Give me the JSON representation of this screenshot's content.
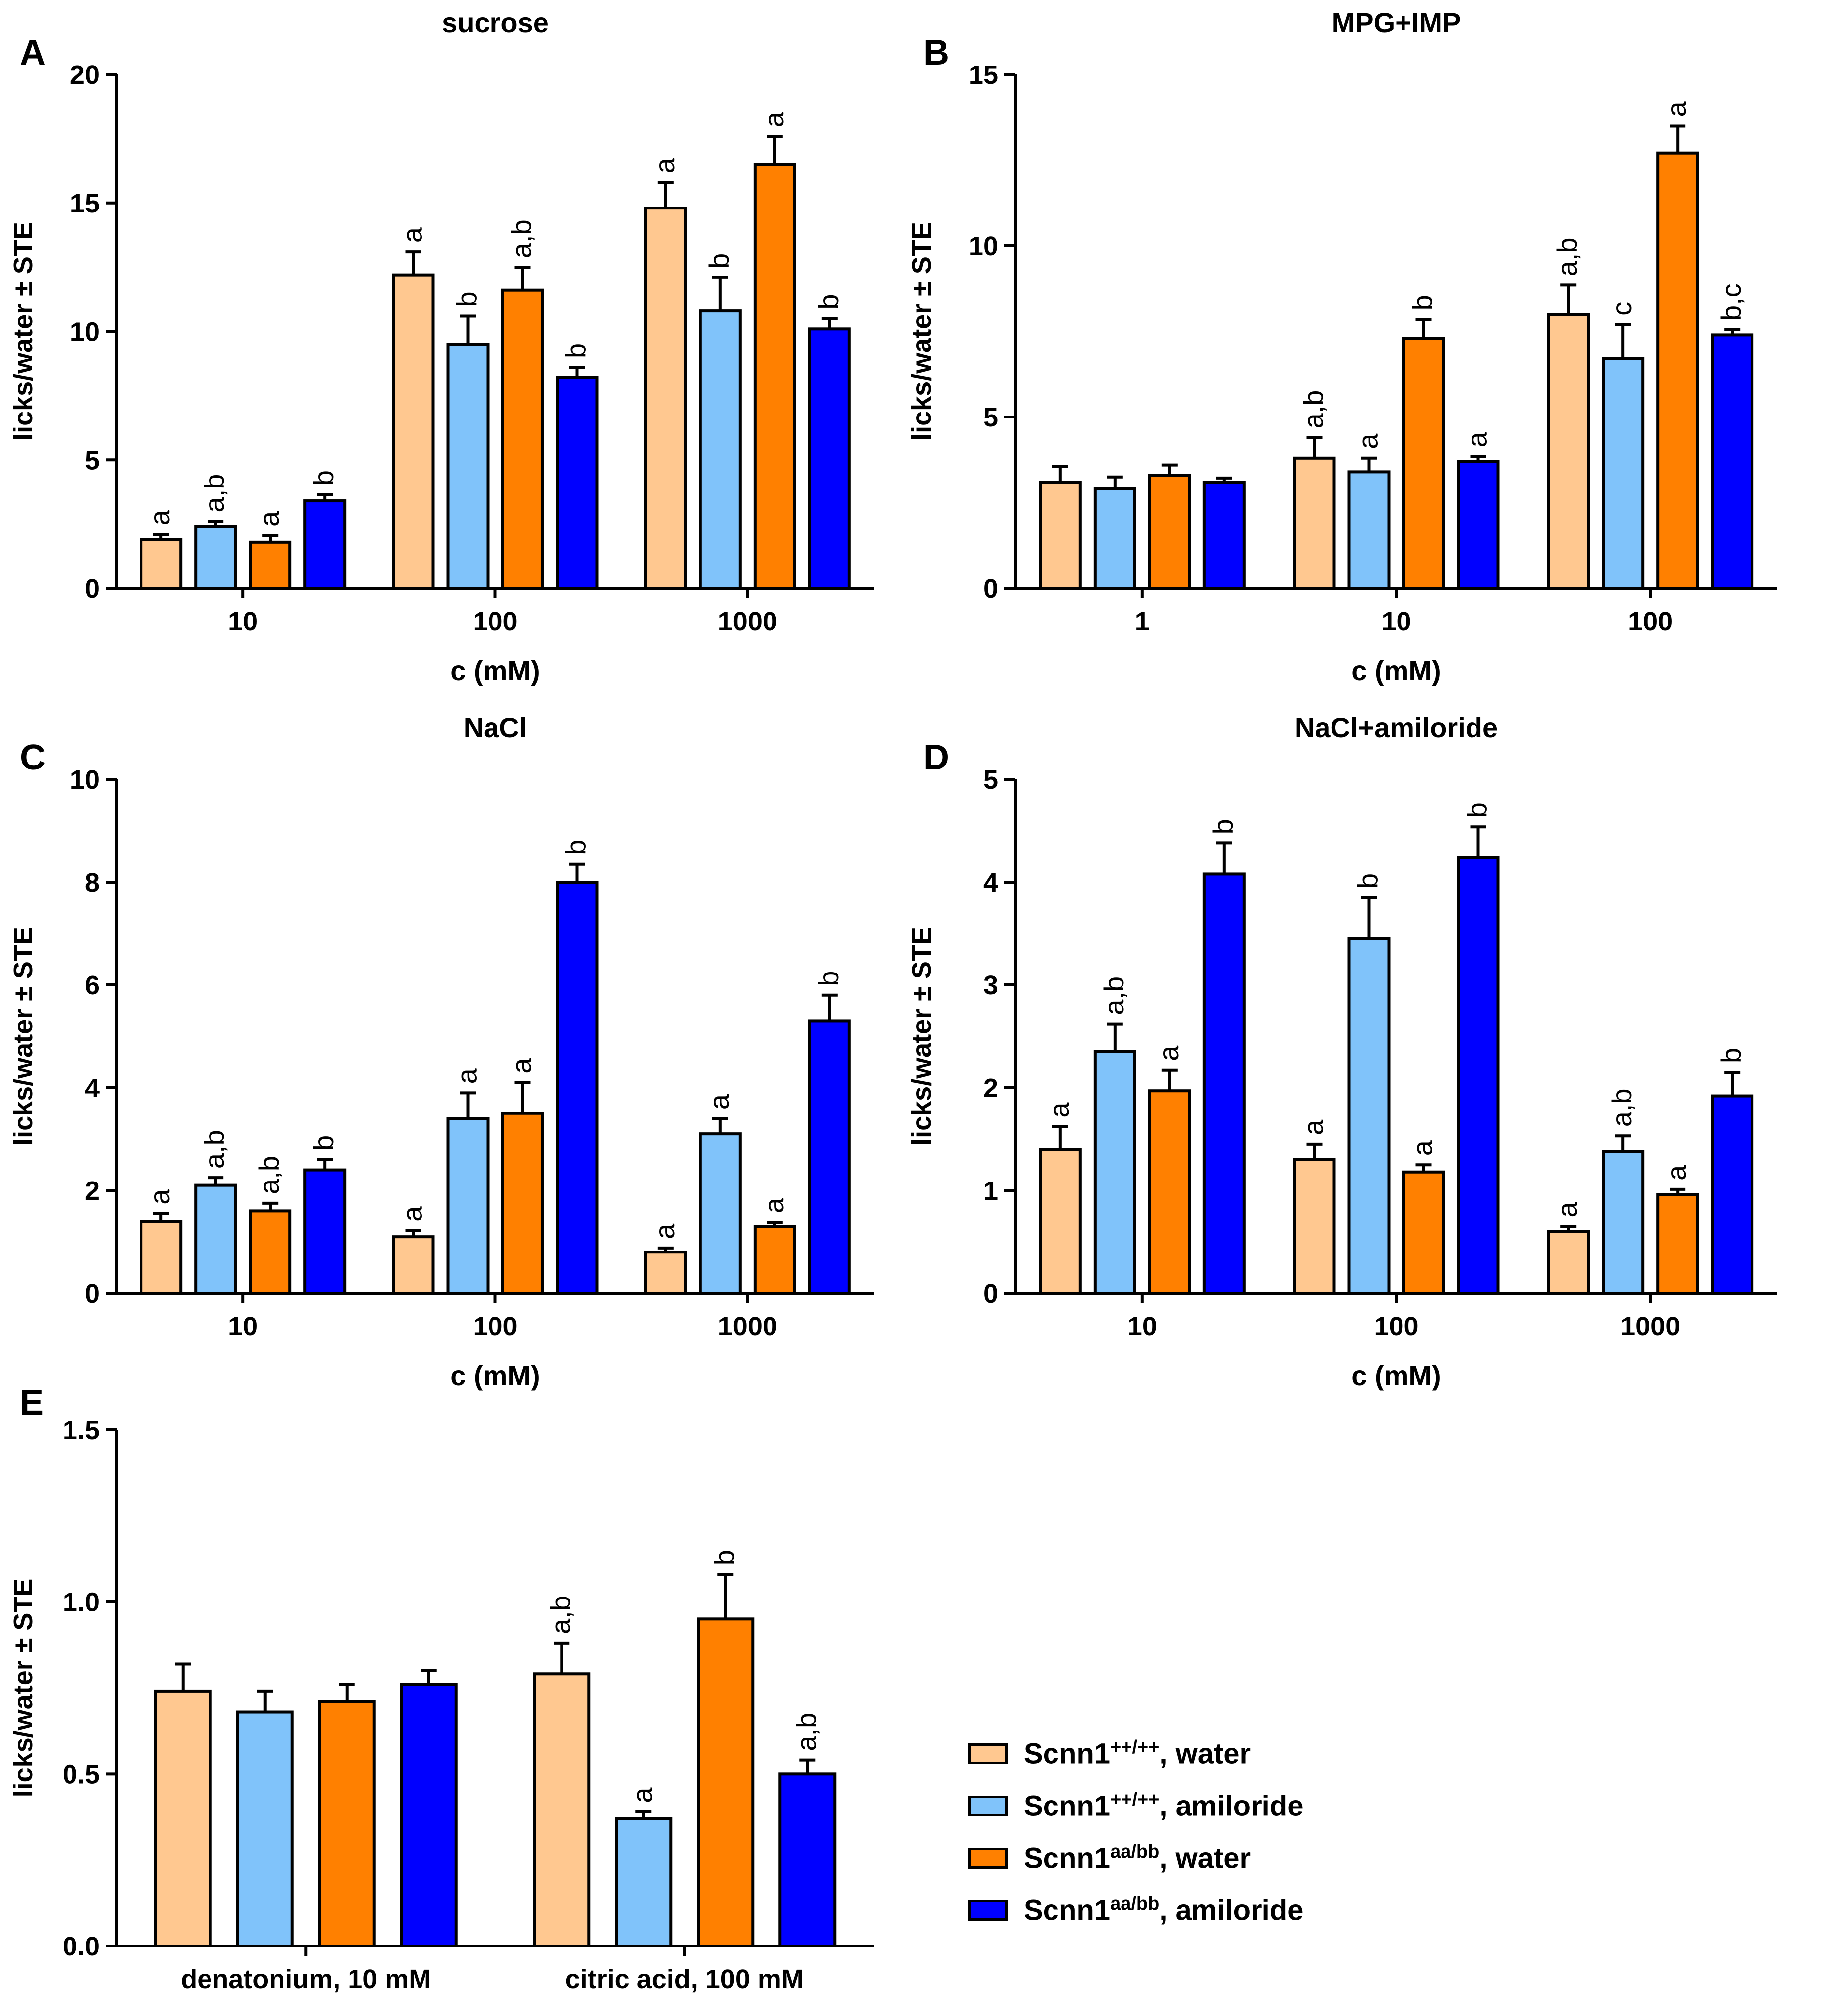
{
  "colors": {
    "ctrl_water": "#FFC890",
    "ctrl_amil": "#80C3FA",
    "mut_water": "#FF8000",
    "mut_amil": "#0000FF"
  },
  "legend": [
    {
      "base": "Scnn1",
      "sup": "++/++",
      "suffix": ", water",
      "color": "#FFC890"
    },
    {
      "base": "Scnn1",
      "sup": "++/++",
      "suffix": ", amiloride",
      "color": "#80C3FA"
    },
    {
      "base": "Scnn1",
      "sup": "aa/bb",
      "suffix": ", water",
      "color": "#FF8000"
    },
    {
      "base": "Scnn1",
      "sup": "aa/bb",
      "suffix": ", amiloride",
      "color": "#0000FF"
    }
  ],
  "chart_data": [
    {
      "panel": "A",
      "type": "bar",
      "title": "sucrose",
      "xlabel": "c (mM)",
      "ylabel": "licks/water ± STE",
      "ylim": [
        0,
        20
      ],
      "yticks": [
        "0",
        "5",
        "10",
        "15",
        "20"
      ],
      "categories": [
        "10",
        "100",
        "1000"
      ],
      "series": [
        {
          "name": "Scnn1++/++, water",
          "values": [
            1.9,
            12.2,
            14.8
          ],
          "errors": [
            0.2,
            0.9,
            1.0
          ],
          "labels": [
            "a",
            "a",
            "a"
          ]
        },
        {
          "name": "Scnn1++/++, amiloride",
          "values": [
            2.4,
            9.5,
            10.8
          ],
          "errors": [
            0.2,
            1.1,
            1.3
          ],
          "labels": [
            "a,b",
            "b",
            "b"
          ]
        },
        {
          "name": "Scnn1aa/bb, water",
          "values": [
            1.8,
            11.6,
            16.5
          ],
          "errors": [
            0.25,
            0.9,
            1.1
          ],
          "labels": [
            "a",
            "a,b",
            "a"
          ]
        },
        {
          "name": "Scnn1aa/bb, amiloride",
          "values": [
            3.4,
            8.2,
            10.1
          ],
          "errors": [
            0.25,
            0.4,
            0.4
          ],
          "labels": [
            "b",
            "b",
            "b"
          ]
        }
      ]
    },
    {
      "panel": "B",
      "type": "bar",
      "title": "MPG+IMP",
      "xlabel": "c (mM)",
      "ylabel": "licks/water ± STE",
      "ylim": [
        0,
        15
      ],
      "yticks": [
        "0",
        "5",
        "10",
        "15"
      ],
      "categories": [
        "1",
        "10",
        "100"
      ],
      "series": [
        {
          "name": "Scnn1++/++, water",
          "values": [
            3.1,
            3.8,
            8.0
          ],
          "errors": [
            0.45,
            0.6,
            0.85
          ],
          "labels": [
            "",
            "a,b",
            "a,b"
          ]
        },
        {
          "name": "Scnn1++/++, amiloride",
          "values": [
            2.9,
            3.4,
            6.7
          ],
          "errors": [
            0.35,
            0.4,
            1.0
          ],
          "labels": [
            "",
            "a",
            "c"
          ]
        },
        {
          "name": "Scnn1aa/bb, water",
          "values": [
            3.3,
            7.3,
            12.7
          ],
          "errors": [
            0.3,
            0.55,
            0.8
          ],
          "labels": [
            "",
            "b",
            "a"
          ]
        },
        {
          "name": "Scnn1aa/bb, amiloride",
          "values": [
            3.1,
            3.7,
            7.4
          ],
          "errors": [
            0.12,
            0.15,
            0.15
          ],
          "labels": [
            "",
            "a",
            "b,c"
          ]
        }
      ]
    },
    {
      "panel": "C",
      "type": "bar",
      "title": "NaCl",
      "xlabel": "c (mM)",
      "ylabel": "licks/water ± STE",
      "ylim": [
        0,
        10
      ],
      "yticks": [
        "0",
        "2",
        "4",
        "6",
        "8",
        "10"
      ],
      "categories": [
        "10",
        "100",
        "1000"
      ],
      "series": [
        {
          "name": "Scnn1++/++, water",
          "values": [
            1.4,
            1.1,
            0.8
          ],
          "errors": [
            0.15,
            0.12,
            0.08
          ],
          "labels": [
            "a",
            "a",
            "a"
          ]
        },
        {
          "name": "Scnn1++/++, amiloride",
          "values": [
            2.1,
            3.4,
            3.1
          ],
          "errors": [
            0.15,
            0.5,
            0.3
          ],
          "labels": [
            "a,b",
            "a",
            "a"
          ]
        },
        {
          "name": "Scnn1aa/bb, water",
          "values": [
            1.6,
            3.5,
            1.3
          ],
          "errors": [
            0.15,
            0.6,
            0.08
          ],
          "labels": [
            "a,b",
            "a",
            "a"
          ]
        },
        {
          "name": "Scnn1aa/bb, amiloride",
          "values": [
            2.4,
            8.0,
            5.3
          ],
          "errors": [
            0.2,
            0.35,
            0.5
          ],
          "labels": [
            "b",
            "b",
            "b"
          ]
        }
      ]
    },
    {
      "panel": "D",
      "type": "bar",
      "title": "NaCl+amiloride",
      "xlabel": "c (mM)",
      "ylabel": "licks/water ± STE",
      "ylim": [
        0,
        5
      ],
      "yticks": [
        "0",
        "1",
        "2",
        "3",
        "4",
        "5"
      ],
      "categories": [
        "10",
        "100",
        "1000"
      ],
      "series": [
        {
          "name": "Scnn1++/++, water",
          "values": [
            1.4,
            1.3,
            0.6
          ],
          "errors": [
            0.22,
            0.15,
            0.05
          ],
          "labels": [
            "a",
            "a",
            "a"
          ]
        },
        {
          "name": "Scnn1++/++, amiloride",
          "values": [
            2.35,
            3.45,
            1.38
          ],
          "errors": [
            0.27,
            0.4,
            0.15
          ],
          "labels": [
            "a,b",
            "b",
            "a,b"
          ]
        },
        {
          "name": "Scnn1aa/bb, water",
          "values": [
            1.97,
            1.18,
            0.96
          ],
          "errors": [
            0.2,
            0.07,
            0.05
          ],
          "labels": [
            "a",
            "a",
            "a"
          ]
        },
        {
          "name": "Scnn1aa/bb, amiloride",
          "values": [
            4.08,
            4.24,
            1.92
          ],
          "errors": [
            0.3,
            0.3,
            0.23
          ],
          "labels": [
            "b",
            "b",
            "b"
          ]
        }
      ]
    },
    {
      "panel": "E",
      "type": "bar",
      "title": "",
      "xlabel": "",
      "ylabel": "licks/water ± STE",
      "ylim": [
        0,
        1.5
      ],
      "yticks": [
        "0.0",
        "0.5",
        "1.0",
        "1.5"
      ],
      "categories": [
        "denatonium, 10 mM",
        "citric acid, 100 mM"
      ],
      "series": [
        {
          "name": "Scnn1++/++, water",
          "values": [
            0.74,
            0.79
          ],
          "errors": [
            0.08,
            0.09
          ],
          "labels": [
            "",
            "a,b"
          ]
        },
        {
          "name": "Scnn1++/++, amiloride",
          "values": [
            0.68,
            0.37
          ],
          "errors": [
            0.06,
            0.02
          ],
          "labels": [
            "",
            "a"
          ]
        },
        {
          "name": "Scnn1aa/bb, water",
          "values": [
            0.71,
            0.95
          ],
          "errors": [
            0.05,
            0.13
          ],
          "labels": [
            "",
            "b"
          ]
        },
        {
          "name": "Scnn1aa/bb, amiloride",
          "values": [
            0.76,
            0.5
          ],
          "errors": [
            0.04,
            0.04
          ],
          "labels": [
            "",
            "a,b"
          ]
        }
      ]
    }
  ]
}
